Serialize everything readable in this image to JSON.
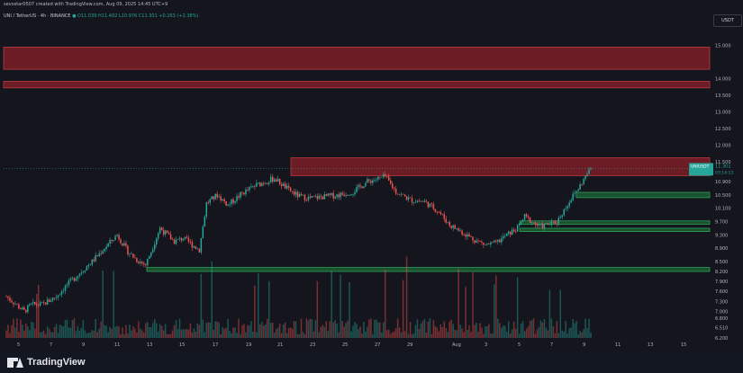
{
  "header": {
    "credit": "sevostar0507 created with TradingView.com, Aug 09, 2025 14:45 UTC+9",
    "symbol": "UNI / TetherUS · 4h · BINANCE",
    "ohlc": "O11.039 H11.402 L10.976 C11.301 +0.263 (+2.38%)",
    "unit": "USDT"
  },
  "footer": {
    "brand": "TradingView"
  },
  "colors": {
    "up": "#26a69a",
    "down": "#ef5350",
    "resistance": "#b2222a",
    "support": "#1e7a3a",
    "background": "#14151d"
  },
  "chart_data": {
    "type": "candlestick",
    "title": "UNI / TetherUS · 4h · BINANCE",
    "ylabel": "USDT",
    "ylim": [
      6.2,
      15.5
    ],
    "y_ticks": [
      15.0,
      14.0,
      13.5,
      13.0,
      12.5,
      12.0,
      11.5,
      10.9,
      10.5,
      10.1,
      9.7,
      9.3,
      8.9,
      8.5,
      8.2,
      7.9,
      7.6,
      7.3,
      7.0,
      6.8,
      6.51,
      6.2
    ],
    "x_ticks": [
      "5",
      "7",
      "9",
      "11",
      "13",
      "15",
      "17",
      "19",
      "21",
      "23",
      "25",
      "27",
      "29",
      "Aug",
      "3",
      "5",
      "7",
      "9",
      "11",
      "13",
      "15"
    ],
    "last_price": {
      "value": 11.301,
      "label": "UNIUSDT",
      "price_label": "11.301",
      "countdown": "03:14:13"
    },
    "zones": [
      {
        "name": "resistance-zone-upper",
        "type": "resistance",
        "from": 14.28,
        "to": 14.95
      },
      {
        "name": "resistance-zone-mid",
        "type": "resistance",
        "from": 13.72,
        "to": 13.92
      },
      {
        "name": "resistance-zone-current",
        "type": "resistance",
        "from": 11.08,
        "to": 11.62
      },
      {
        "name": "support-zone-1",
        "type": "support",
        "from": 10.42,
        "to": 10.58
      },
      {
        "name": "support-zone-2",
        "type": "support",
        "from": 9.62,
        "to": 9.72
      },
      {
        "name": "support-zone-3",
        "type": "support",
        "from": 9.4,
        "to": 9.5
      },
      {
        "name": "support-zone-4",
        "type": "support",
        "from": 8.2,
        "to": 8.32
      }
    ],
    "path_anchors": [
      [
        0,
        7.45
      ],
      [
        10,
        7.0
      ],
      [
        14,
        7.2
      ],
      [
        20,
        7.2
      ],
      [
        28,
        7.45
      ],
      [
        34,
        7.8
      ],
      [
        40,
        8.1
      ],
      [
        48,
        8.5
      ],
      [
        54,
        8.85
      ],
      [
        62,
        9.3
      ],
      [
        68,
        8.8
      ],
      [
        73,
        8.55
      ],
      [
        78,
        8.4
      ],
      [
        86,
        9.5
      ],
      [
        94,
        9.1
      ],
      [
        99,
        9.2
      ],
      [
        104,
        9.0
      ],
      [
        108,
        8.85
      ],
      [
        112,
        10.25
      ],
      [
        118,
        10.5
      ],
      [
        124,
        10.2
      ],
      [
        132,
        10.55
      ],
      [
        140,
        10.8
      ],
      [
        150,
        11.0
      ],
      [
        158,
        10.65
      ],
      [
        164,
        10.45
      ],
      [
        170,
        10.4
      ],
      [
        178,
        10.45
      ],
      [
        186,
        10.5
      ],
      [
        194,
        10.6
      ],
      [
        202,
        10.9
      ],
      [
        212,
        11.05
      ],
      [
        218,
        10.6
      ],
      [
        226,
        10.35
      ],
      [
        234,
        10.3
      ],
      [
        242,
        10.0
      ],
      [
        248,
        9.6
      ],
      [
        256,
        9.35
      ],
      [
        262,
        9.15
      ],
      [
        268,
        9.0
      ],
      [
        274,
        9.05
      ],
      [
        280,
        9.3
      ],
      [
        286,
        9.5
      ],
      [
        290,
        9.85
      ],
      [
        294,
        9.7
      ],
      [
        298,
        9.55
      ],
      [
        302,
        9.6
      ],
      [
        308,
        9.7
      ],
      [
        312,
        10.05
      ],
      [
        316,
        10.4
      ],
      [
        320,
        10.7
      ],
      [
        324,
        11.05
      ],
      [
        327,
        11.3
      ]
    ]
  }
}
